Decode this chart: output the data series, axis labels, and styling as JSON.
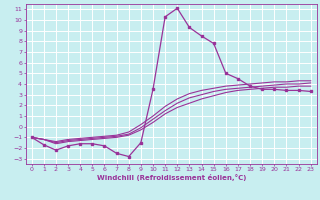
{
  "xlabel": "Windchill (Refroidissement éolien,°C)",
  "bg_color": "#c8eef0",
  "line_color": "#993399",
  "grid_color": "#ffffff",
  "xlim": [
    -0.5,
    23.5
  ],
  "ylim": [
    -3.5,
    11.5
  ],
  "xticks": [
    0,
    1,
    2,
    3,
    4,
    5,
    6,
    7,
    8,
    9,
    10,
    11,
    12,
    13,
    14,
    15,
    16,
    17,
    18,
    19,
    20,
    21,
    22,
    23
  ],
  "yticks": [
    -3,
    -2,
    -1,
    0,
    1,
    2,
    3,
    4,
    5,
    6,
    7,
    8,
    9,
    10,
    11
  ],
  "s1_x": [
    0,
    1,
    2,
    3,
    4,
    5,
    6,
    7,
    8,
    9,
    10,
    11,
    12,
    13,
    14,
    15,
    16,
    17,
    18,
    19,
    20,
    21,
    22,
    23
  ],
  "s1_y": [
    -1.0,
    -1.7,
    -2.2,
    -1.8,
    -1.6,
    -1.6,
    -1.8,
    -2.5,
    -2.8,
    -1.5,
    3.5,
    10.3,
    11.1,
    9.3,
    8.5,
    7.8,
    5.0,
    4.5,
    3.8,
    3.5,
    3.5,
    3.4,
    3.4,
    3.3
  ],
  "s2_x": [
    0,
    1,
    2,
    3,
    4,
    5,
    6,
    7,
    8,
    9,
    10,
    11,
    12,
    13,
    14,
    15,
    16,
    17,
    18,
    19,
    20,
    21,
    22,
    23
  ],
  "s2_y": [
    -1.0,
    -1.2,
    -1.6,
    -1.4,
    -1.3,
    -1.2,
    -1.1,
    -1.0,
    -0.8,
    -0.3,
    0.4,
    1.2,
    1.8,
    2.2,
    2.6,
    2.9,
    3.2,
    3.4,
    3.5,
    3.6,
    3.7,
    3.7,
    3.8,
    3.8
  ],
  "s3_x": [
    0,
    1,
    2,
    3,
    4,
    5,
    6,
    7,
    8,
    9,
    10,
    11,
    12,
    13,
    14,
    15,
    16,
    17,
    18,
    19,
    20,
    21,
    22,
    23
  ],
  "s3_y": [
    -1.0,
    -1.2,
    -1.5,
    -1.3,
    -1.2,
    -1.1,
    -1.0,
    -0.9,
    -0.7,
    -0.1,
    0.7,
    1.5,
    2.2,
    2.7,
    3.0,
    3.3,
    3.5,
    3.6,
    3.7,
    3.8,
    3.9,
    4.0,
    4.0,
    4.1
  ],
  "s4_x": [
    0,
    1,
    2,
    3,
    4,
    5,
    6,
    7,
    8,
    9,
    10,
    11,
    12,
    13,
    14,
    15,
    16,
    17,
    18,
    19,
    20,
    21,
    22,
    23
  ],
  "s4_y": [
    -1.0,
    -1.2,
    -1.4,
    -1.2,
    -1.1,
    -1.0,
    -0.9,
    -0.8,
    -0.5,
    0.2,
    1.0,
    1.9,
    2.6,
    3.1,
    3.4,
    3.6,
    3.8,
    3.9,
    4.0,
    4.1,
    4.2,
    4.2,
    4.3,
    4.3
  ]
}
